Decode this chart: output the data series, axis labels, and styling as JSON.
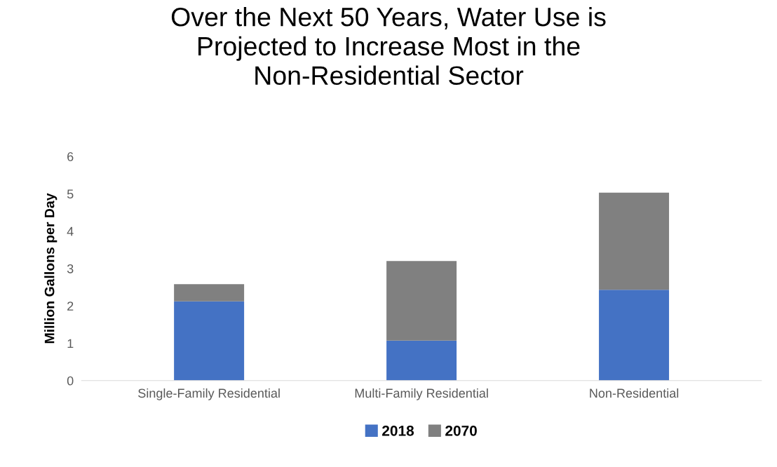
{
  "chart_data": {
    "type": "bar",
    "title": "Over the Next 50 Years, Water Use is\nProjected to Increase Most in the\nNon-Residential Sector",
    "ylabel": "Million Gallons per Day",
    "categories": [
      "Single-Family Residential",
      "Multi-Family Residential",
      "Non-Residential"
    ],
    "series": [
      {
        "name": "2018",
        "color": "#4472c4",
        "values": [
          2.12,
          1.07,
          2.43
        ]
      },
      {
        "name": "2070",
        "color": "#808080",
        "values": [
          0.46,
          2.13,
          2.6
        ]
      }
    ],
    "stacked": true,
    "ylim": [
      0,
      6
    ],
    "yticks": [
      0,
      1,
      2,
      3,
      4,
      5,
      6
    ],
    "grid": false,
    "legend": "bottom"
  }
}
